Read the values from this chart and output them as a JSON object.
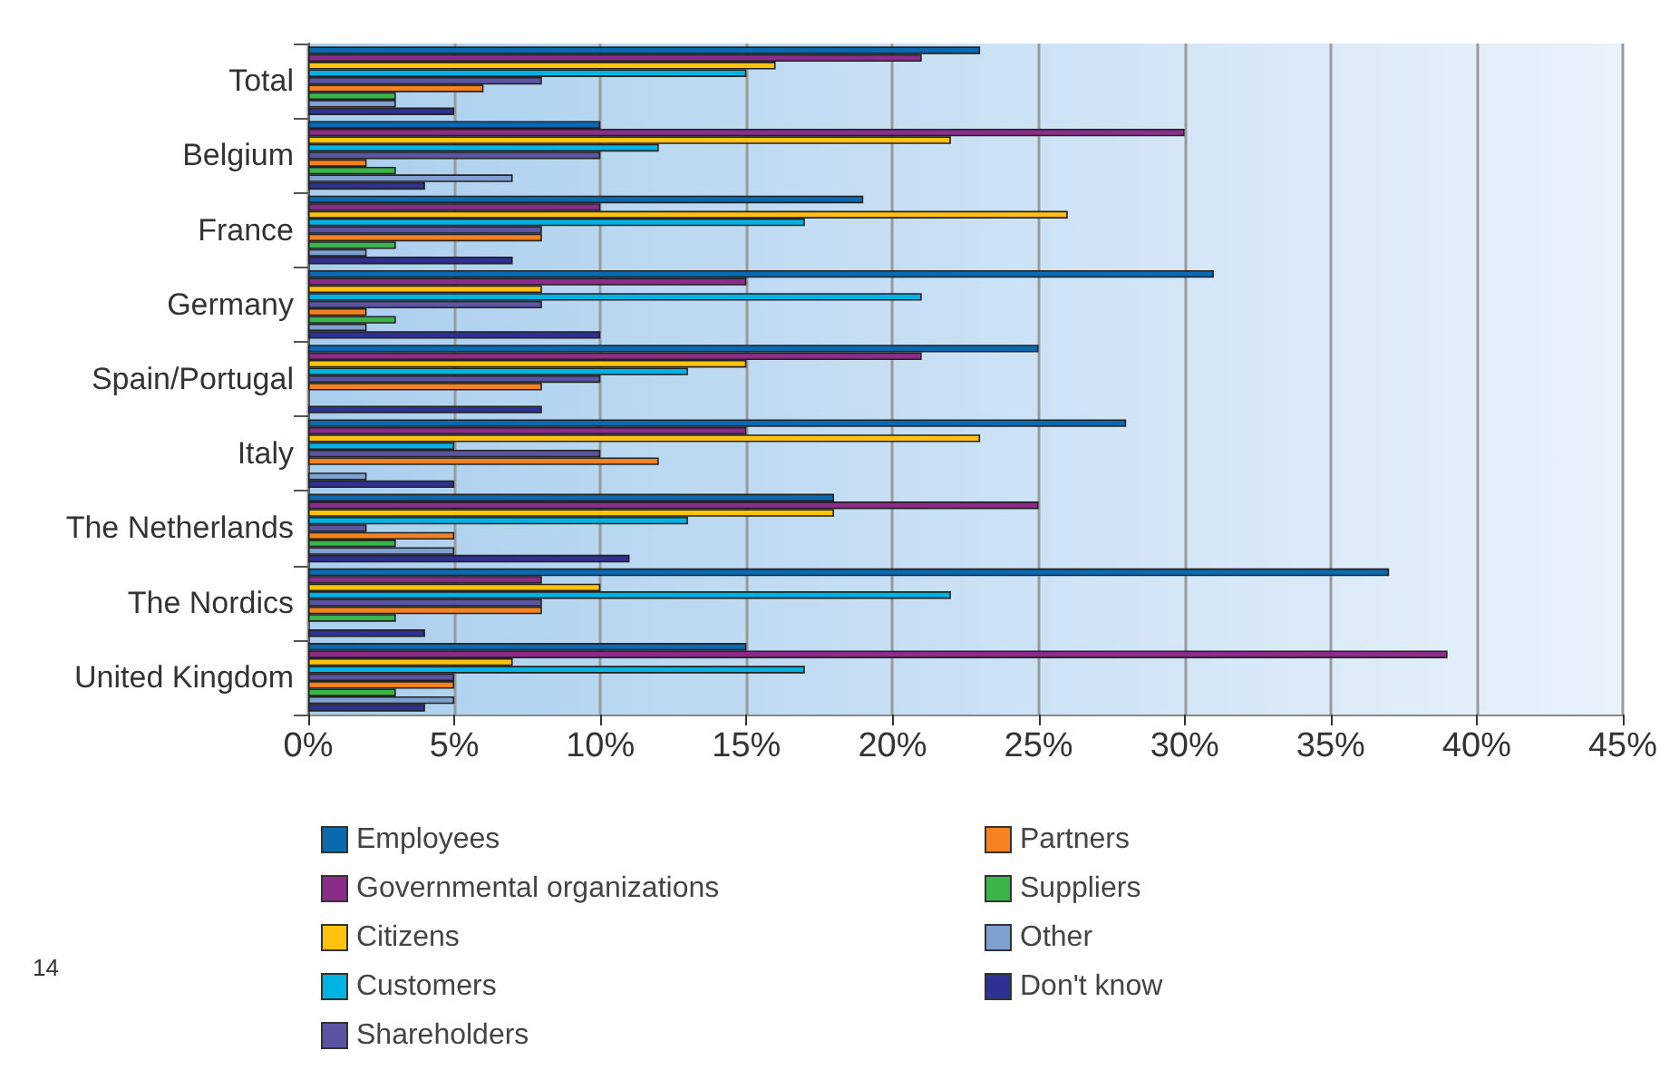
{
  "chart_data": {
    "type": "bar",
    "orientation": "horizontal",
    "categories": [
      "Total",
      "Belgium",
      "France",
      "Germany",
      "Spain/Portugal",
      "Italy",
      "The Netherlands",
      "The Nordics",
      "United Kingdom"
    ],
    "series": [
      {
        "name": "Employees",
        "color": "#0b6aaf",
        "values": [
          23,
          10,
          19,
          31,
          25,
          28,
          18,
          37,
          15
        ]
      },
      {
        "name": "Governmental organizations",
        "color": "#8b2b8a",
        "values": [
          21,
          30,
          10,
          15,
          21,
          15,
          25,
          8,
          39
        ]
      },
      {
        "name": "Citizens",
        "color": "#ffc20e",
        "values": [
          16,
          22,
          26,
          8,
          15,
          23,
          18,
          10,
          7
        ]
      },
      {
        "name": "Customers",
        "color": "#00b3e3",
        "values": [
          15,
          12,
          17,
          21,
          13,
          5,
          13,
          22,
          17
        ]
      },
      {
        "name": "Shareholders",
        "color": "#5a54a3",
        "values": [
          8,
          10,
          8,
          8,
          10,
          10,
          2,
          8,
          5
        ]
      },
      {
        "name": "Partners",
        "color": "#f58220",
        "values": [
          6,
          2,
          8,
          2,
          8,
          12,
          5,
          8,
          5
        ]
      },
      {
        "name": "Suppliers",
        "color": "#39b54a",
        "values": [
          3,
          3,
          3,
          3,
          null,
          null,
          3,
          3,
          3
        ]
      },
      {
        "name": "Other",
        "color": "#7da0d0",
        "values": [
          3,
          7,
          2,
          2,
          null,
          2,
          5,
          null,
          5
        ]
      },
      {
        "name": "Don't know",
        "color": "#2e3192",
        "values": [
          5,
          4,
          7,
          10,
          8,
          5,
          11,
          4,
          4
        ]
      }
    ],
    "xlim": [
      0,
      45
    ],
    "xticks": [
      {
        "value": 0,
        "label": "0%"
      },
      {
        "value": 5,
        "label": "5%"
      },
      {
        "value": 10,
        "label": "10%"
      },
      {
        "value": 15,
        "label": "15%"
      },
      {
        "value": 20,
        "label": "20%"
      },
      {
        "value": 25,
        "label": "25%"
      },
      {
        "value": 30,
        "label": "30%"
      },
      {
        "value": 35,
        "label": "35%"
      },
      {
        "value": 40,
        "label": "40%"
      },
      {
        "value": 45,
        "label": "45%"
      }
    ],
    "grid": "x",
    "legend": "bottom",
    "annotations": [
      "14"
    ]
  }
}
